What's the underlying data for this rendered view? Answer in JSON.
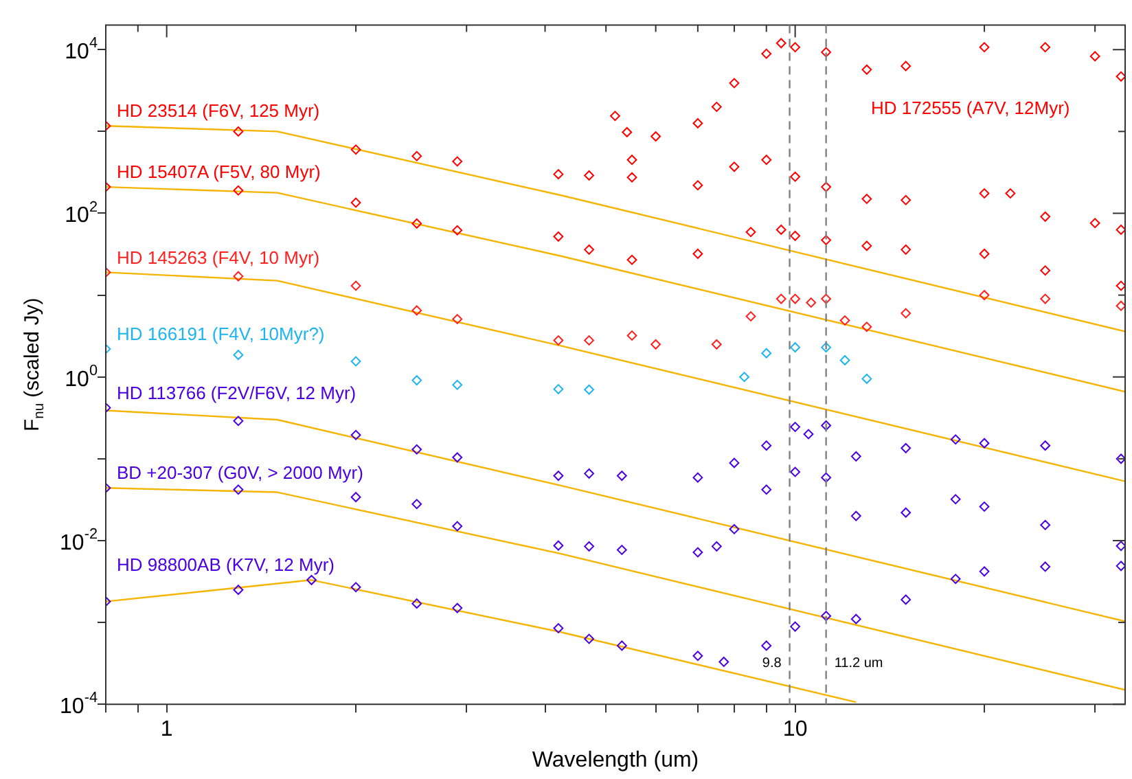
{
  "chart_data": {
    "type": "scatter",
    "xlabel": "Wavelength (um)",
    "ylabel": "F$_{nu}$ (scaled Jy)",
    "log": "xy",
    "xlim": [
      0.8,
      33.5
    ],
    "ylim": [
      0.0001,
      20000
    ],
    "xticks": [
      {
        "value": 0.8,
        "label": null
      },
      {
        "value": 0.9,
        "label": null
      },
      1,
      {
        "value": 2,
        "label": null
      },
      {
        "value": 3,
        "label": null
      },
      {
        "value": 4,
        "label": null
      },
      {
        "value": 5,
        "label": null
      },
      {
        "value": 6,
        "label": null
      },
      {
        "value": 7,
        "label": null
      },
      {
        "value": 8,
        "label": null
      },
      {
        "value": 9,
        "label": null
      },
      10,
      {
        "value": 20,
        "label": null
      },
      {
        "value": 30,
        "label": null
      }
    ],
    "yticks": [
      {
        "value": 0.0001,
        "label": "10$^{-4}$"
      },
      {
        "value": 0.001,
        "label": null
      },
      {
        "value": 0.01,
        "label": "10$^{-2}$"
      },
      {
        "value": 0.1,
        "label": null
      },
      {
        "value": 1,
        "label": "10$^{0}$"
      },
      {
        "value": 10,
        "label": null
      },
      {
        "value": 100,
        "label": "10$^{2}$"
      },
      {
        "value": 1000,
        "label": null
      },
      {
        "value": 10000,
        "label": "10$^{4}$"
      }
    ],
    "grid": false,
    "legend": false,
    "marker": "diamond",
    "ref_lines": [
      {
        "axis": "x",
        "value": 9.8,
        "label": "9.8",
        "color": "#808080",
        "line_style": "dashed"
      },
      {
        "axis": "x",
        "value": 11.2,
        "label": "11.2 um",
        "color": "#808080",
        "line_style": "dashed"
      }
    ],
    "series": [
      {
        "name": "HD 23514 (F6V, 125 Myr)",
        "color": "#ff0000",
        "x": [
          0.8,
          1.3,
          2,
          2.5,
          2.9,
          4.2,
          4.7,
          5.5,
          7,
          8,
          9,
          10,
          11.2,
          13,
          15,
          20,
          22,
          25,
          30,
          33
        ],
        "values": [
          1170,
          1000,
          600,
          500,
          430,
          300,
          290,
          275,
          220,
          370,
          450,
          280,
          210,
          150,
          145,
          175,
          175,
          91,
          76,
          63
        ]
      },
      {
        "name": "HD 15407A (F5V, 80 Myr)",
        "color": "#ff0000",
        "x": [
          0.8,
          1.3,
          2,
          2.5,
          2.9,
          4.2,
          4.7,
          5.5,
          7,
          8.5,
          9.5,
          10,
          11.2,
          13,
          15,
          20,
          25,
          33
        ],
        "values": [
          210,
          190,
          135,
          75,
          62,
          52,
          36,
          27,
          32,
          59,
          63,
          53,
          47,
          40,
          36,
          32,
          20,
          13
        ]
      },
      {
        "name": "HD 145263 (F4V, 10 Myr)",
        "color": "#ff2020",
        "x": [
          0.8,
          1.3,
          2,
          2.5,
          2.9,
          4.2,
          4.7,
          5.5,
          6,
          7.5,
          8.5,
          9.5,
          10,
          10.6,
          11.2,
          12,
          13,
          15,
          20,
          25,
          33
        ],
        "values": [
          19,
          17,
          13,
          6.5,
          5.1,
          2.8,
          2.8,
          3.2,
          2.5,
          2.5,
          5.5,
          9,
          9,
          8.1,
          9,
          4.9,
          4.1,
          6,
          10,
          9,
          7.4
        ]
      },
      {
        "name": "HD 166191 (F4V, 10Myr?)",
        "color": "#1eb4f0",
        "x": [
          0.8,
          1.3,
          2,
          2.5,
          2.9,
          4.2,
          4.7,
          8.3,
          9,
          10,
          11.2,
          12,
          13
        ],
        "values": [
          2.2,
          1.86,
          1.55,
          0.91,
          0.8,
          0.71,
          0.7,
          1,
          1.95,
          2.3,
          2.3,
          1.6,
          0.95
        ]
      },
      {
        "name": "HD 113766 (F2V/F6V, 12 Myr)",
        "color": "#4a00e0",
        "x": [
          0.8,
          1.3,
          2,
          2.5,
          2.9,
          4.2,
          4.7,
          5.3,
          7,
          8,
          9,
          10,
          10.5,
          11.2,
          12.5,
          15,
          18,
          20,
          25,
          33
        ],
        "values": [
          0.42,
          0.29,
          0.195,
          0.13,
          0.104,
          0.062,
          0.066,
          0.062,
          0.059,
          0.089,
          0.145,
          0.245,
          0.2,
          0.255,
          0.107,
          0.135,
          0.172,
          0.155,
          0.145,
          0.1
        ]
      },
      {
        "name": "BD +20-307 (G0V, > 2000 Myr)",
        "color": "#4a00e0",
        "x": [
          0.8,
          1.3,
          2,
          2.5,
          2.9,
          4.2,
          4.7,
          5.3,
          7,
          7.5,
          8,
          9,
          10,
          11.2,
          12.5,
          15,
          18,
          20,
          25,
          33
        ],
        "values": [
          0.044,
          0.042,
          0.034,
          0.028,
          0.015,
          0.0087,
          0.0085,
          0.0077,
          0.0072,
          0.0085,
          0.0138,
          0.042,
          0.069,
          0.059,
          0.02,
          0.022,
          0.032,
          0.026,
          0.0155,
          0.0086
        ]
      },
      {
        "name": "HD 98800AB (K7V, 12 Myr)",
        "color": "#4a00e0",
        "x": [
          0.8,
          1.3,
          1.7,
          2,
          2.5,
          2.9,
          4.2,
          4.7,
          5.3,
          7,
          7.7,
          9,
          10,
          11.2,
          12.5,
          15,
          18,
          20,
          25,
          33
        ],
        "values": [
          0.0018,
          0.0025,
          0.0033,
          0.0027,
          0.0017,
          0.0015,
          0.00085,
          0.00063,
          0.00052,
          0.00039,
          0.00033,
          0.00052,
          0.00089,
          0.0012,
          0.0011,
          0.0019,
          0.0034,
          0.0042,
          0.0048,
          0.0049
        ]
      },
      {
        "name": "HD 172555 (A7V, 12Myr)",
        "color": "#ff0000",
        "x": [
          5.17,
          5.4,
          5.5,
          6,
          7,
          7.5,
          8,
          9,
          9.5,
          10,
          11.2,
          13,
          15,
          20,
          25,
          30,
          33
        ],
        "values": [
          1550,
          980,
          450,
          870,
          1260,
          2000,
          3900,
          8900,
          12000,
          10700,
          9300,
          5700,
          6300,
          10700,
          10700,
          8300,
          4700
        ]
      },
      {
        "type": "line",
        "marker": "none",
        "color": "#f5b400",
        "x": [
          0.8,
          1.5,
          4.24,
          33.5
        ],
        "values": [
          1170,
          1000,
          166,
          3.6
        ]
      },
      {
        "type": "line",
        "marker": "none",
        "color": "#f5b400",
        "x": [
          0.8,
          1.5,
          4.24,
          33.5
        ],
        "values": [
          210,
          178,
          30,
          0.66
        ]
      },
      {
        "type": "line",
        "marker": "none",
        "color": "#f5b400",
        "x": [
          0.8,
          1.5,
          4.24,
          33.5
        ],
        "values": [
          19,
          15,
          2.4,
          0.053
        ]
      },
      {
        "type": "line",
        "marker": "none",
        "color": "#f5b400",
        "x": [
          0.8,
          1.5,
          4.24,
          33.5
        ],
        "values": [
          0.39,
          0.3,
          0.047,
          0.00103
        ]
      },
      {
        "type": "line",
        "marker": "none",
        "color": "#f5b400",
        "x": [
          0.8,
          1.5,
          4.24,
          33.5
        ],
        "values": [
          0.044,
          0.039,
          0.0069,
          0.00015
        ]
      },
      {
        "type": "line",
        "marker": "none",
        "color": "#f5b400",
        "x": [
          0.8,
          1.7,
          4.24,
          12.5
        ],
        "values": [
          0.0018,
          0.0033,
          0.00076,
          0.000106
        ]
      }
    ]
  }
}
